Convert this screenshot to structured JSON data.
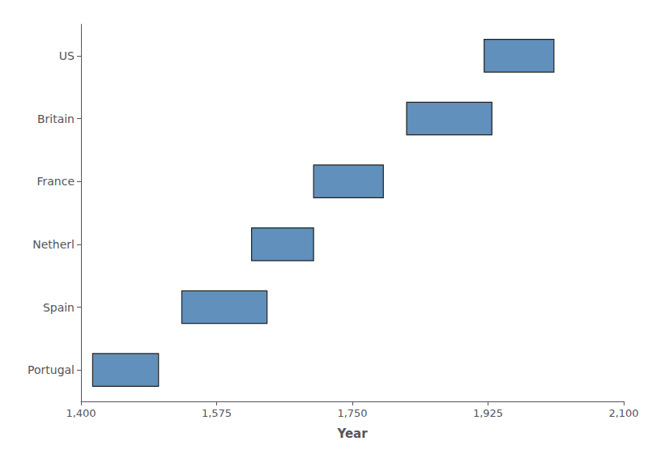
{
  "chart_data": {
    "type": "gantt",
    "orientation": "horizontal",
    "categories": [
      "Portugal",
      "Spain",
      "Netherl",
      "France",
      "Britain",
      "US"
    ],
    "values": [
      [
        1415,
        1500
      ],
      [
        1530,
        1640
      ],
      [
        1620,
        1700
      ],
      [
        1700,
        1790
      ],
      [
        1820,
        1930
      ],
      [
        1920,
        2010
      ]
    ],
    "color": "#6090bb",
    "xlabel": "Year",
    "xlim": [
      1400,
      2100
    ],
    "xticks": [
      1400,
      1575,
      1750,
      1925,
      2100
    ],
    "grid": false
  }
}
